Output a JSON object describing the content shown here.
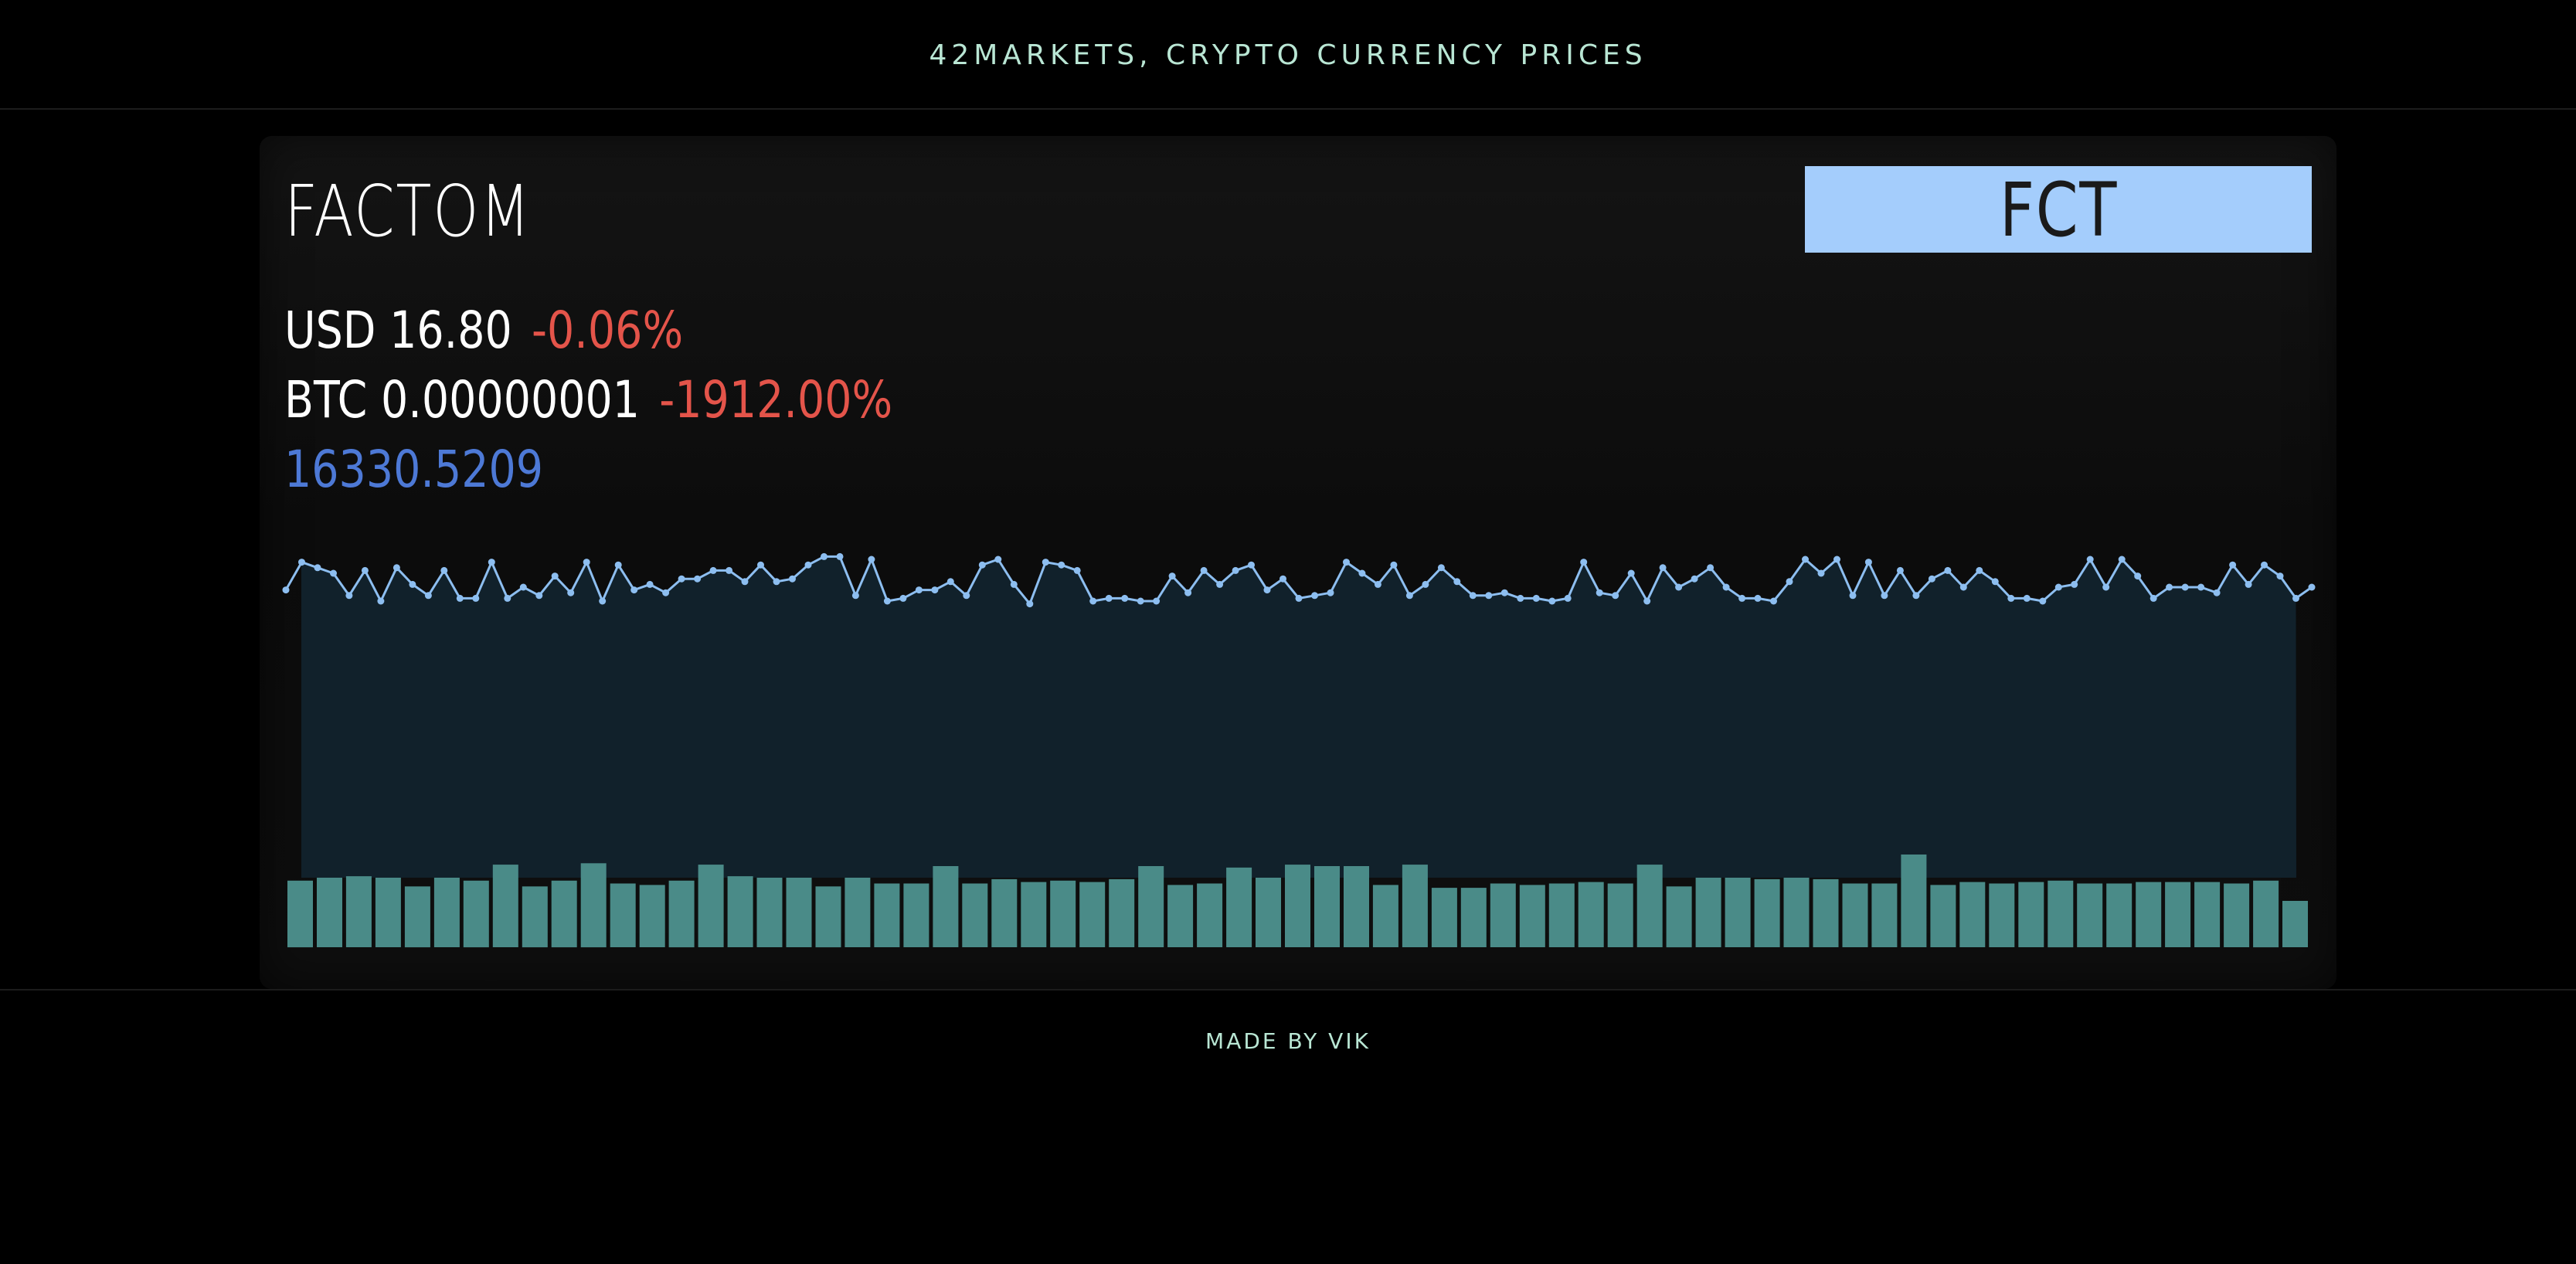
{
  "header": {
    "title": "42MARKETS, CRYPTO CURRENCY PRICES"
  },
  "coin": {
    "name": "FACTOM",
    "symbol": "FCT",
    "usd_label": "USD 16.80",
    "usd_change": "-0.06%",
    "btc_label": "BTC 0.00000001",
    "btc_change": "-1912.00%",
    "extra_value": "16330.5209"
  },
  "colors": {
    "accent_text": "#b9e6d4",
    "badge_bg": "#a4cdfc",
    "negative": "#e4544a",
    "extra_value": "#4d79d6",
    "price_line": "#8dbef0",
    "area_fill": "#11212b",
    "volume_bar": "#4a8b88"
  },
  "footer": {
    "text": "MADE BY VIK"
  },
  "chart_data": {
    "type": "area",
    "price_series": [
      59,
      69,
      67,
      65,
      57,
      66,
      55,
      67,
      61,
      57,
      66,
      56,
      56,
      69,
      56,
      60,
      57,
      64,
      58,
      69,
      55,
      68,
      59,
      61,
      58,
      63,
      63,
      66,
      66,
      62,
      68,
      62,
      63,
      68,
      71,
      71,
      57,
      70,
      55,
      56,
      59,
      59,
      62,
      57,
      68,
      70,
      61,
      54,
      69,
      68,
      66,
      55,
      56,
      56,
      55,
      55,
      64,
      58,
      66,
      61,
      66,
      68,
      59,
      63,
      56,
      57,
      58,
      69,
      65,
      61,
      68,
      57,
      61,
      67,
      62,
      57,
      57,
      58,
      56,
      56,
      55,
      56,
      69,
      58,
      57,
      65,
      55,
      67,
      60,
      63,
      67,
      60,
      56,
      56,
      55,
      62,
      70,
      65,
      70,
      57,
      69,
      57,
      66,
      57,
      63,
      66,
      60,
      66,
      62,
      56,
      56,
      55,
      60,
      61,
      70,
      60,
      70,
      64,
      56,
      60,
      60,
      60,
      58,
      68,
      61,
      68,
      64,
      56,
      60
    ],
    "volume_bars": [
      46,
      48,
      49,
      48,
      42,
      48,
      46,
      57,
      42,
      46,
      58,
      44,
      43,
      46,
      57,
      49,
      48,
      48,
      42,
      48,
      44,
      44,
      56,
      44,
      47,
      45,
      46,
      45,
      47,
      56,
      43,
      44,
      55,
      48,
      57,
      56,
      56,
      43,
      57,
      41,
      41,
      44,
      43,
      44,
      45,
      44,
      57,
      42,
      48,
      48,
      47,
      48,
      47,
      44,
      44,
      64,
      43,
      45,
      44,
      45,
      46,
      44,
      44,
      45,
      45,
      45,
      44,
      46,
      32
    ]
  }
}
